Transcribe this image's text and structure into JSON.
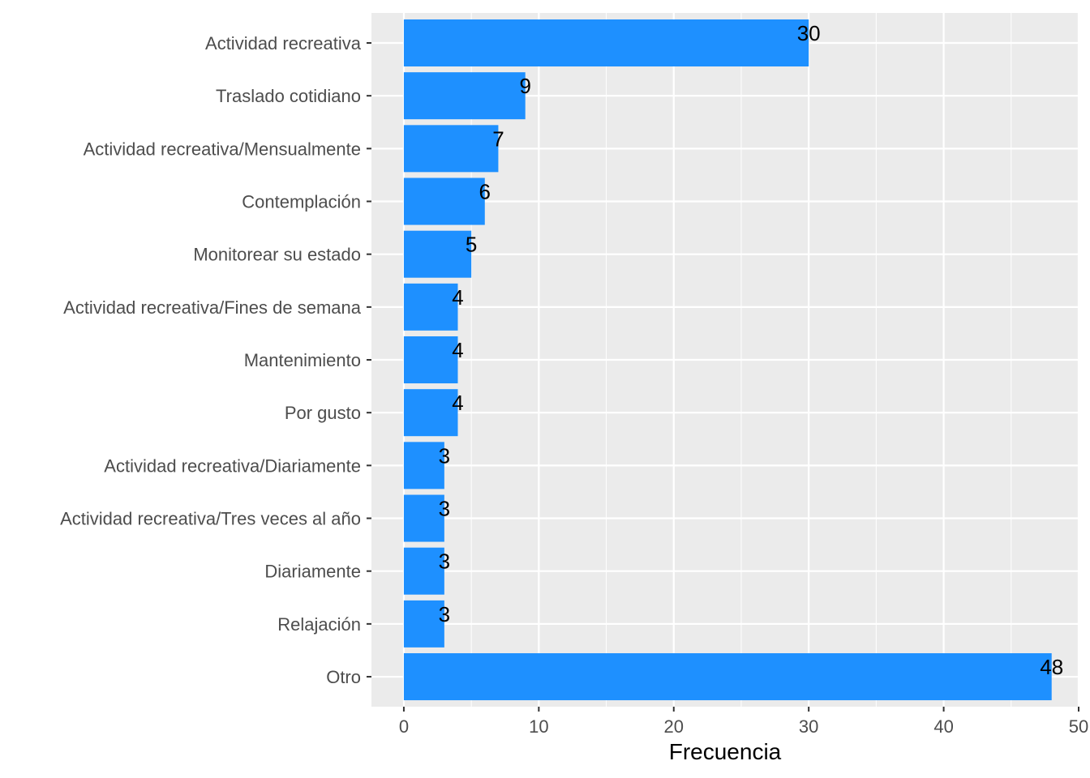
{
  "chart_data": {
    "type": "bar",
    "orientation": "horizontal",
    "categories": [
      "Actividad recreativa",
      "Traslado cotidiano",
      "Actividad recreativa/Mensualmente",
      "Contemplación",
      "Monitorear su estado",
      "Actividad recreativa/Fines de semana",
      "Mantenimiento",
      "Por gusto",
      "Actividad recreativa/Diariamente",
      "Actividad recreativa/Tres veces al año",
      "Diariamente",
      "Relajación",
      "Otro"
    ],
    "values": [
      30,
      9,
      7,
      6,
      5,
      4,
      4,
      4,
      3,
      3,
      3,
      3,
      48
    ],
    "data_labels": [
      "30",
      "9",
      "7",
      "6",
      "5",
      "4",
      "4",
      "4",
      "3",
      "3",
      "3",
      "3",
      "48"
    ],
    "title": "",
    "xlabel": "Frecuencia",
    "ylabel": "",
    "xlim": [
      -2.4,
      50
    ],
    "x_ticks": [
      0,
      10,
      20,
      30,
      40,
      50
    ],
    "x_tick_labels": [
      "0",
      "10",
      "20",
      "30",
      "40",
      "50"
    ],
    "grid": true,
    "legend": "none",
    "colors": {
      "bar": "#1E90FF",
      "panel_background": "#EBEBEB",
      "grid_line": "#FFFFFF",
      "tick_text": "#4D4D4D",
      "tick_mark": "#333333",
      "label_text": "#000000"
    }
  }
}
